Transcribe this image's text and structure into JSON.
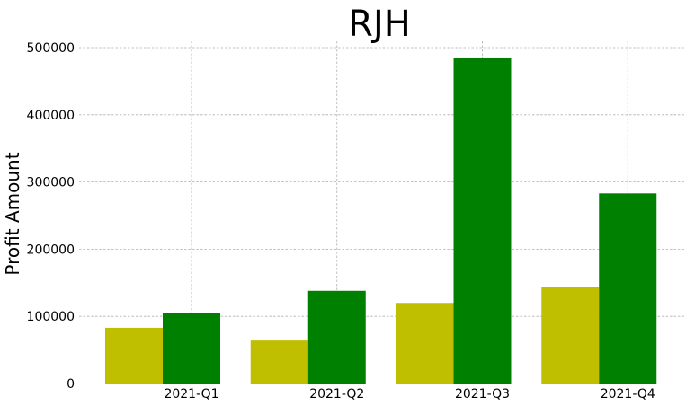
{
  "chart_data": {
    "type": "bar",
    "title": "RJH",
    "xlabel": "",
    "ylabel": "Profit Amount",
    "categories": [
      "2021-Q1",
      "2021-Q2",
      "2021-Q3",
      "2021-Q4"
    ],
    "series": [
      {
        "color": "#bfbf00",
        "values": [
          83000,
          64000,
          120000,
          144000
        ]
      },
      {
        "color": "#008000",
        "values": [
          105000,
          138000,
          484000,
          283000
        ]
      }
    ],
    "ylim": [
      0,
      500000
    ],
    "yticks": [
      0,
      100000,
      200000,
      300000,
      400000,
      500000
    ],
    "ytick_labels": [
      "0",
      "100000",
      "200000",
      "300000",
      "400000",
      "500000"
    ],
    "grid": true,
    "legend": "none"
  }
}
